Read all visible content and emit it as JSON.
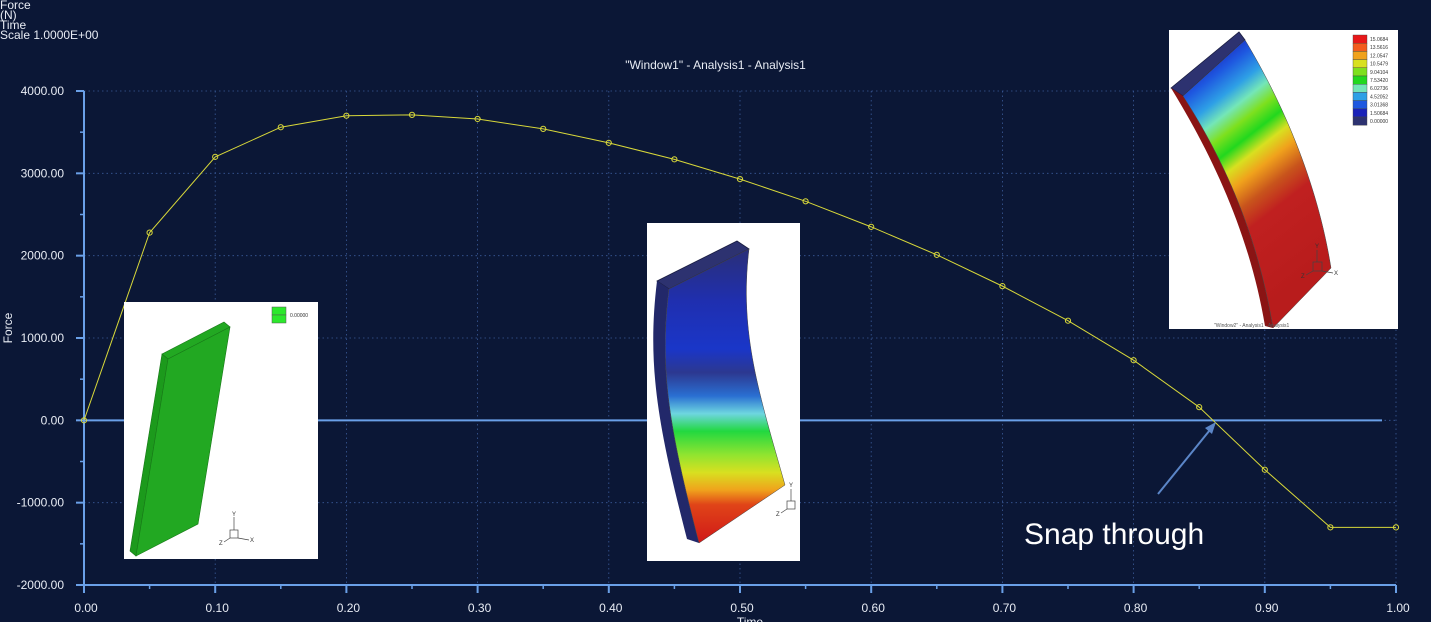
{
  "header": {
    "y_quantity": "Force",
    "y_unit": "(N)",
    "x_quantity": "Time",
    "scale": "Scale  1.0000E+00"
  },
  "chart_data": {
    "type": "line",
    "title": "\"Window1\" - Analysis1 - Analysis1",
    "xlabel": "Time",
    "ylabel": "Force",
    "xlim": [
      0,
      1
    ],
    "ylim": [
      -2000,
      4000
    ],
    "x_ticks": [
      "0.00",
      "0.10",
      "0.20",
      "0.30",
      "0.40",
      "0.50",
      "0.60",
      "0.70",
      "0.80",
      "0.90",
      "1.00"
    ],
    "y_ticks": [
      "4000.00",
      "3000.00",
      "2000.00",
      "1000.00",
      "0.00",
      "-1000.00",
      "-2000.00"
    ],
    "grid": true,
    "color": "#d8d83a",
    "series": [
      {
        "x": [
          0.0,
          0.05,
          0.1,
          0.15,
          0.2,
          0.25,
          0.3,
          0.35,
          0.4,
          0.45,
          0.5,
          0.55,
          0.6,
          0.65,
          0.7,
          0.75,
          0.8,
          0.85,
          0.9,
          0.95,
          1.0
        ],
        "values": [
          0,
          2280,
          3200,
          3560,
          3700,
          3710,
          3660,
          3540,
          3370,
          3170,
          2930,
          2660,
          2350,
          2010,
          1630,
          1210,
          730,
          160,
          -600,
          -1300,
          -1300
        ]
      }
    ]
  },
  "annotation": {
    "text": "Snap through"
  },
  "insets": {
    "left": {
      "legend": [
        "0.00000"
      ]
    },
    "right": {
      "legend": [
        "15.0684",
        "13.5616",
        "12.0547",
        "10.5479",
        "9.04104",
        "7.53420",
        "6.02736",
        "4.52052",
        "3.01368",
        "1.50684",
        "0.00000"
      ],
      "legend_colors": [
        "#e8181a",
        "#f35c1e",
        "#f0a21c",
        "#d8e020",
        "#7ee01e",
        "#22d81e",
        "#74e6b8",
        "#2ea0e6",
        "#1e58e0",
        "#1a22b8",
        "#2d3270"
      ],
      "caption": "\"Window2\" - Analysis1 - Analysis1"
    }
  }
}
